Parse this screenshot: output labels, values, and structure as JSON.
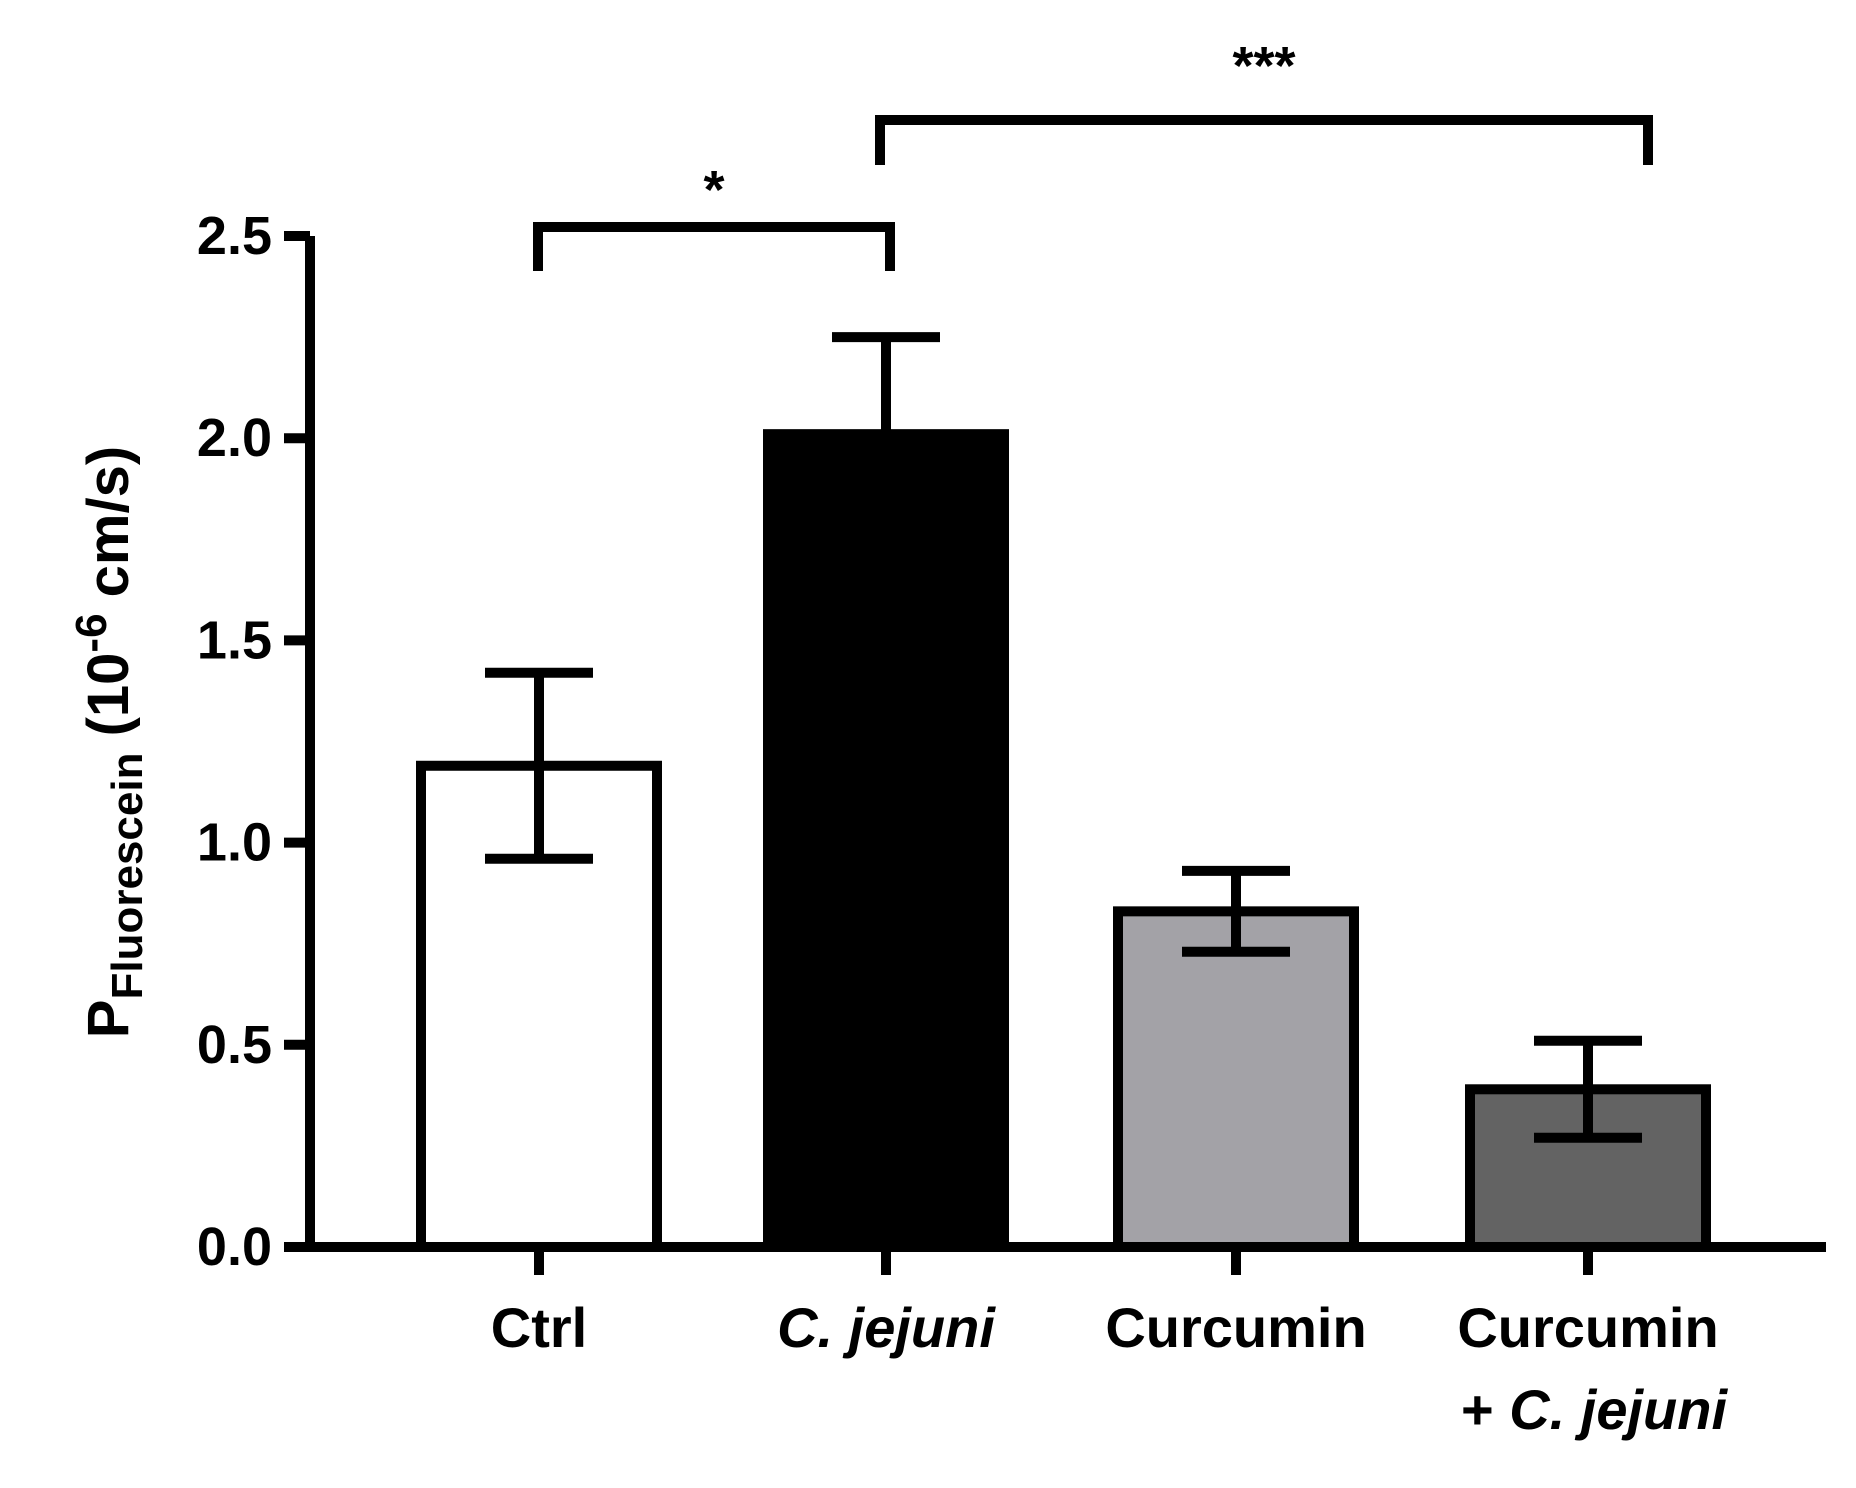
{
  "chart_data": {
    "type": "bar",
    "categories": [
      "Ctrl",
      "C. jejuni",
      "Curcumin",
      "Curcumin + C. jejuni"
    ],
    "category_labels": [
      {
        "lines": [
          "Ctrl"
        ],
        "italic": [
          false
        ]
      },
      {
        "lines": [
          "C. jejuni"
        ],
        "italic": [
          true
        ]
      },
      {
        "lines": [
          "Curcumin"
        ],
        "italic": [
          false
        ]
      },
      {
        "lines": [
          "Curcumin",
          "+ C. jejuni"
        ],
        "italic": [
          false,
          true
        ]
      }
    ],
    "values": [
      1.19,
      2.01,
      0.83,
      0.39
    ],
    "error_upper": [
      1.42,
      2.25,
      0.93,
      0.51
    ],
    "error_lower": [
      0.96,
      1.77,
      0.73,
      0.27
    ],
    "colors": [
      "#ffffff",
      "#000000",
      "#a3a2a7",
      "#636363"
    ],
    "ylabel": {
      "main": "P",
      "subscript": "Fluorescein",
      "unit_prefix": " (10",
      "exponent": "-6",
      "unit_suffix": " cm/s)"
    },
    "xlabel": "",
    "ylim": [
      0,
      2.5
    ],
    "yticks": [
      0.0,
      0.5,
      1.0,
      1.5,
      2.0,
      2.5
    ],
    "ytick_labels": [
      "0.0",
      "0.5",
      "1.0",
      "1.5",
      "2.0",
      "2.5"
    ],
    "grid": false,
    "significance": [
      {
        "from": 0,
        "to": 1,
        "label": "*",
        "level": 2.5
      },
      {
        "from": 1,
        "to": 3,
        "label": "***",
        "level": 2.78
      }
    ]
  }
}
